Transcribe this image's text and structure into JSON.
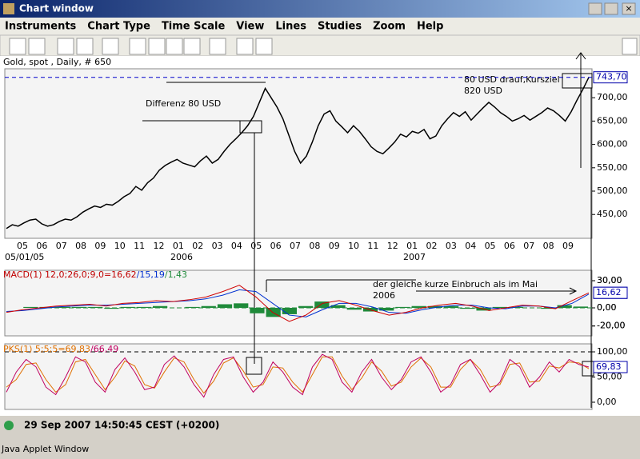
{
  "window": {
    "title": "Chart window",
    "status": "29 Sep 2007 14:50:45 CEST (+0200)",
    "footer": "Java Applet Window"
  },
  "menu": [
    "Instruments",
    "Chart Type",
    "Time Scale",
    "View",
    "Lines",
    "Studies",
    "Zoom",
    "Help"
  ],
  "price": {
    "header": "Gold, spot , Daily, # 650",
    "ylim": [
      399,
      762
    ],
    "yticks": [
      {
        "value": 450,
        "label": "450,00"
      },
      {
        "value": 500,
        "label": "500,00"
      },
      {
        "value": 550,
        "label": "550,00"
      },
      {
        "value": 600,
        "label": "600,00"
      },
      {
        "value": 650,
        "label": "650,00"
      },
      {
        "value": 700,
        "label": "700,00"
      }
    ],
    "last": {
      "value": 743.7,
      "label": "743,70"
    },
    "values": [
      420,
      428,
      425,
      432,
      438,
      440,
      430,
      425,
      428,
      435,
      440,
      438,
      445,
      455,
      462,
      468,
      465,
      472,
      470,
      478,
      488,
      495,
      510,
      502,
      518,
      528,
      545,
      555,
      562,
      568,
      560,
      556,
      552,
      565,
      575,
      560,
      568,
      585,
      600,
      612,
      625,
      640,
      660,
      690,
      720,
      700,
      680,
      655,
      620,
      585,
      560,
      575,
      605,
      640,
      665,
      672,
      650,
      638,
      625,
      640,
      628,
      612,
      595,
      585,
      580,
      592,
      605,
      622,
      616,
      628,
      624,
      632,
      612,
      618,
      640,
      655,
      668,
      660,
      670,
      652,
      665,
      678,
      690,
      680,
      668,
      660,
      650,
      655,
      662,
      652,
      660,
      668,
      678,
      672,
      662,
      650,
      670,
      695,
      718,
      743.7
    ],
    "months": [
      "05",
      "06",
      "07",
      "08",
      "09",
      "10",
      "11",
      "12",
      "01",
      "02",
      "03",
      "04",
      "05",
      "06",
      "07",
      "08",
      "09",
      "10",
      "11",
      "12",
      "01",
      "02",
      "03",
      "04",
      "05",
      "06",
      "07",
      "08",
      "09"
    ],
    "years": [
      "05/01/05",
      "2006",
      "2007"
    ]
  },
  "macd": {
    "label": [
      "MACD(1) 12,0;26,0;9,0=16,62",
      "/15,19",
      "/1,43"
    ],
    "ylim": [
      -30.9,
      41.5
    ],
    "yticks": [
      {
        "value": 30,
        "label": "30,00"
      },
      {
        "value": 0,
        "label": "0,00"
      },
      {
        "value": -20,
        "label": "-20,00"
      }
    ],
    "last": {
      "value": 16.62,
      "label": "16,62"
    },
    "macd": [
      -5,
      -2,
      0,
      2,
      3,
      4,
      2,
      5,
      6,
      8,
      7,
      9,
      12,
      18,
      25,
      12,
      -5,
      -15,
      -8,
      5,
      8,
      3,
      -3,
      -8,
      -5,
      0,
      3,
      5,
      2,
      -3,
      0,
      3,
      2,
      -1,
      8,
      16.62
    ],
    "signal": [
      -4,
      -3,
      -1,
      1,
      2,
      3,
      3,
      4,
      5,
      6,
      7,
      8,
      10,
      14,
      20,
      18,
      5,
      -8,
      -10,
      -2,
      5,
      5,
      1,
      -5,
      -6,
      -2,
      1,
      3,
      3,
      0,
      -1,
      2,
      2,
      0,
      5,
      15.19
    ],
    "hist": [
      0,
      1,
      1,
      1,
      1,
      1,
      -1,
      1,
      1,
      2,
      0,
      1,
      2,
      4,
      5,
      -6,
      -10,
      -7,
      2,
      7,
      3,
      -2,
      -4,
      -3,
      1,
      2,
      2,
      2,
      -1,
      -3,
      1,
      1,
      0,
      -1,
      3,
      1.43
    ]
  },
  "stoch": {
    "label": [
      "PKS(1) 5;5;5=69,83",
      "/66,49"
    ],
    "ylim": [
      -14.3,
      115.9
    ],
    "yticks": [
      {
        "value": 100,
        "label": "100,00"
      },
      {
        "value": 50,
        "label": "50,00"
      },
      {
        "value": 0,
        "label": "0,00"
      }
    ],
    "last": {
      "value": 69.83,
      "label": "69,83"
    },
    "k": [
      20,
      60,
      85,
      70,
      30,
      15,
      50,
      90,
      80,
      40,
      20,
      65,
      88,
      60,
      25,
      30,
      75,
      92,
      70,
      35,
      10,
      55,
      85,
      90,
      50,
      20,
      40,
      80,
      60,
      30,
      15,
      70,
      95,
      85,
      40,
      20,
      60,
      85,
      50,
      25,
      45,
      80,
      90,
      60,
      20,
      35,
      75,
      85,
      55,
      20,
      40,
      85,
      70,
      30,
      50,
      80,
      60,
      85,
      75,
      69.83
    ],
    "d": [
      30,
      45,
      75,
      78,
      45,
      20,
      35,
      80,
      85,
      55,
      25,
      50,
      82,
      72,
      35,
      28,
      60,
      88,
      80,
      45,
      18,
      42,
      78,
      88,
      62,
      30,
      35,
      70,
      68,
      40,
      20,
      55,
      90,
      90,
      52,
      25,
      48,
      80,
      62,
      32,
      40,
      70,
      88,
      70,
      30,
      30,
      65,
      85,
      65,
      30,
      35,
      75,
      78,
      40,
      42,
      72,
      68,
      80,
      78,
      66.49
    ]
  },
  "annotations": [
    "Differenz 80 USD",
    "80 USD drauf,Kursziel",
    "820 USD",
    "der gleiche kurze Einbruch als im Mai",
    "2006"
  ]
}
